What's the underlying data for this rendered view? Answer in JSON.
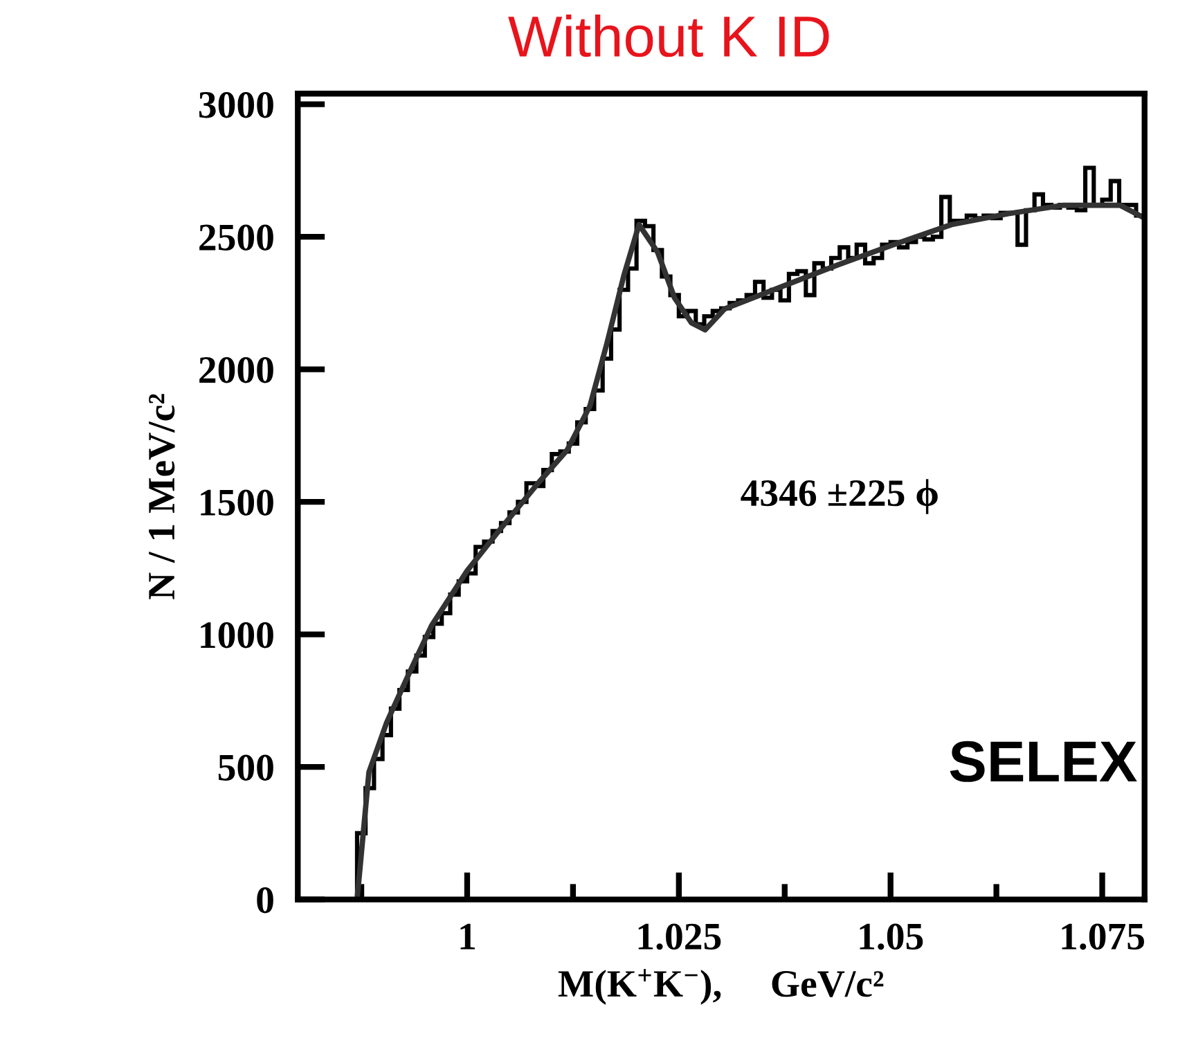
{
  "chart_data": {
    "type": "histogram",
    "title": "Without K ID",
    "xlabel": "M(K$^{+}$K$^{−}$),     GeV/c²",
    "ylabel": "N / 1 MeV/c²",
    "xlim": [
      0.98,
      1.08
    ],
    "ylim": [
      0,
      3040
    ],
    "xticks": [
      1,
      1.025,
      1.05,
      1.075
    ],
    "yticks": [
      0,
      500,
      1000,
      1500,
      2000,
      2500,
      3000
    ],
    "grid": false,
    "legend": false,
    "series": [
      {
        "color": "#000000",
        "bins": [
          0.987,
          0.988,
          0.989,
          0.99,
          0.991,
          0.992,
          0.993,
          0.994,
          0.995,
          0.996,
          0.997,
          0.998,
          0.999,
          1.0,
          1.001,
          1.002,
          1.003,
          1.004,
          1.005,
          1.006,
          1.007,
          1.008,
          1.009,
          1.01,
          1.011,
          1.012,
          1.013,
          1.014,
          1.015,
          1.016,
          1.017,
          1.018,
          1.019,
          1.02,
          1.021,
          1.022,
          1.023,
          1.024,
          1.025,
          1.026,
          1.027,
          1.028,
          1.029,
          1.03,
          1.031,
          1.032,
          1.033,
          1.034,
          1.035,
          1.036,
          1.037,
          1.038,
          1.039,
          1.04,
          1.041,
          1.042,
          1.043,
          1.044,
          1.045,
          1.046,
          1.047,
          1.048,
          1.049,
          1.05,
          1.051,
          1.052,
          1.053,
          1.054,
          1.055,
          1.056,
          1.057,
          1.058,
          1.059,
          1.06,
          1.061,
          1.062,
          1.063,
          1.064,
          1.065,
          1.066,
          1.067,
          1.068,
          1.069,
          1.07,
          1.071,
          1.072,
          1.073,
          1.074,
          1.075,
          1.076,
          1.077,
          1.078,
          1.079,
          1.08
        ],
        "values": [
          250,
          420,
          530,
          620,
          720,
          790,
          860,
          920,
          990,
          1040,
          1080,
          1150,
          1200,
          1230,
          1330,
          1350,
          1390,
          1420,
          1460,
          1500,
          1570,
          1560,
          1620,
          1680,
          1690,
          1720,
          1800,
          1850,
          1920,
          2040,
          2150,
          2300,
          2380,
          2560,
          2540,
          2450,
          2350,
          2280,
          2200,
          2220,
          2170,
          2200,
          2220,
          2230,
          2250,
          2260,
          2280,
          2330,
          2270,
          2300,
          2260,
          2360,
          2370,
          2280,
          2400,
          2380,
          2420,
          2460,
          2420,
          2470,
          2400,
          2420,
          2470,
          2480,
          2460,
          2480,
          2500,
          2490,
          2500,
          2650,
          2560,
          2560,
          2580,
          2570,
          2580,
          2570,
          2590,
          2590,
          2470,
          2600,
          2660,
          2620,
          2610,
          2620,
          2610,
          2600,
          2760,
          2620,
          2640,
          2710,
          2620,
          2620,
          2580
        ]
      },
      {
        "type": "line",
        "color": "#333333",
        "x": [
          0.987,
          0.9884,
          0.9905,
          0.9931,
          0.9958,
          1.0,
          1.0038,
          1.0085,
          1.0118,
          1.0145,
          1.0165,
          1.0185,
          1.0203,
          1.0225,
          1.0245,
          1.0265,
          1.0281,
          1.0304,
          1.0371,
          1.0438,
          1.0505,
          1.0572,
          1.0639,
          1.0704,
          1.0771,
          1.0796
        ],
        "values": [
          0,
          480,
          668,
          850,
          1033,
          1240,
          1393,
          1575,
          1695,
          1862,
          2097,
          2353,
          2546,
          2441,
          2269,
          2175,
          2149,
          2228,
          2311,
          2394,
          2472,
          2546,
          2587,
          2619,
          2619,
          2577
        ]
      }
    ],
    "annotations": [
      "4346 ±225 ϕ",
      "SELEX"
    ]
  }
}
